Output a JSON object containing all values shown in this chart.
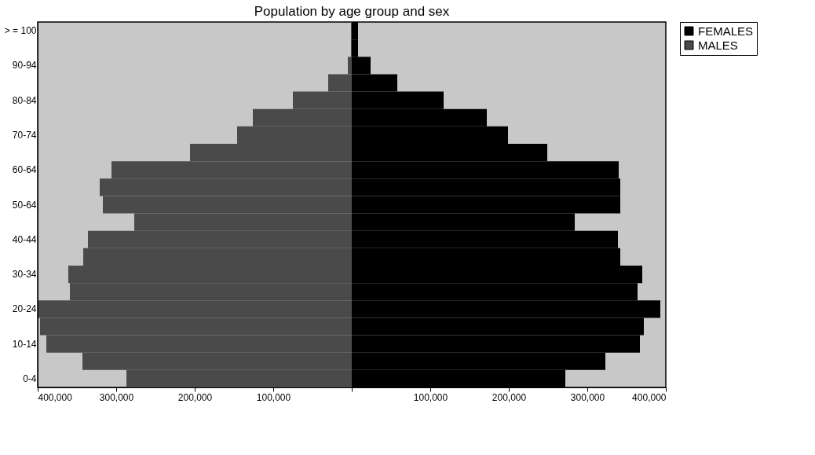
{
  "chart_data": {
    "type": "bar",
    "orientation": "horizontal",
    "stacked": true,
    "title": "Population by age group and sex",
    "categories": [
      "> = 100",
      null,
      "90-94",
      null,
      "80-84",
      null,
      "70-74",
      null,
      "60-64",
      null,
      "50-64",
      null,
      "40-44",
      null,
      "30-34",
      null,
      "20-24",
      null,
      "10-14",
      null,
      "0-4"
    ],
    "series": [
      {
        "name": "FEMALES",
        "color": "#000000",
        "values": [
          8000,
          8000,
          24000,
          58000,
          117000,
          172000,
          199000,
          249000,
          340000,
          342000,
          342000,
          284000,
          339000,
          342000,
          370000,
          364000,
          393000,
          372000,
          367000,
          323000,
          272000
        ]
      },
      {
        "name": "MALES",
        "color": "#4a4a4a",
        "values": [
          -1000,
          -1000,
          -5000,
          -30000,
          -75000,
          -126000,
          -146000,
          -206000,
          -306000,
          -321000,
          -317000,
          -277000,
          -336000,
          -342000,
          -361000,
          -359000,
          -399000,
          -397000,
          -389000,
          -343000,
          -287000
        ]
      }
    ],
    "xlim": [
      -400000,
      400000
    ],
    "xticks": [
      {
        "value": -400000,
        "label": "400,000"
      },
      {
        "value": -300000,
        "label": "300,000"
      },
      {
        "value": -200000,
        "label": "200,000"
      },
      {
        "value": -100000,
        "label": "100,000"
      },
      {
        "value": 0,
        "label": null
      },
      {
        "value": 100000,
        "label": "100,000"
      },
      {
        "value": 200000,
        "label": "200,000"
      },
      {
        "value": 300000,
        "label": "300,000"
      },
      {
        "value": 400000,
        "label": "400,000"
      }
    ],
    "legend": "right"
  }
}
